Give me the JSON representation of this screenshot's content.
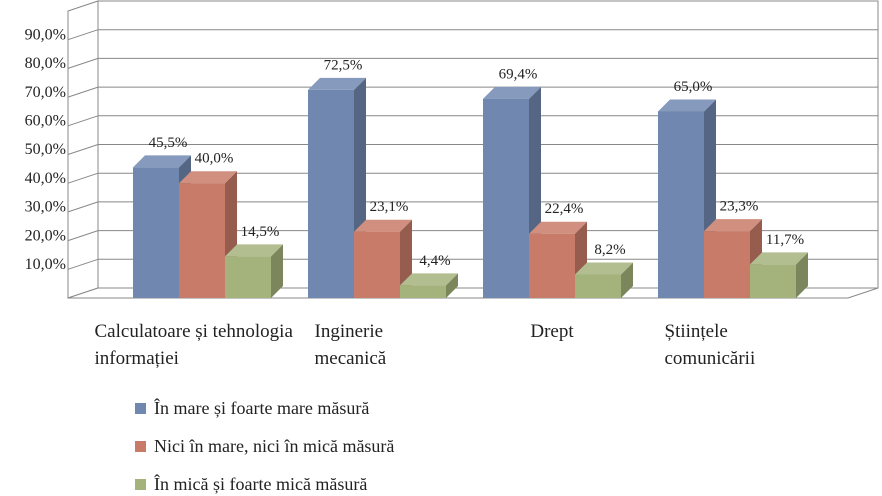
{
  "chart_data": {
    "type": "bar3d",
    "categories": [
      "Calculatoare și tehnologia informației",
      "Inginerie mecanică",
      "Drept",
      "Științele comunicării"
    ],
    "series": [
      {
        "name": "În mare și foarte mare măsură",
        "color": "#7088b0",
        "values": [
          45.5,
          72.5,
          69.4,
          65.0
        ],
        "value_labels": [
          "45,5%",
          "72,5%",
          "69,4%",
          "65,0%"
        ]
      },
      {
        "name": "Nici în mare, nici în mică măsură",
        "color": "#c87b68",
        "values": [
          40.0,
          23.1,
          22.4,
          23.3
        ],
        "value_labels": [
          "40,0%",
          "23,1%",
          "22,4%",
          "23,3%"
        ]
      },
      {
        "name": "În mică și foarte mică măsură",
        "color": "#a4b27c",
        "values": [
          14.5,
          4.4,
          8.2,
          11.7
        ],
        "value_labels": [
          "14,5%",
          "4,4%",
          "8,2%",
          "11,7%"
        ]
      }
    ],
    "ylim": [
      0,
      100
    ],
    "yticks": [
      {
        "value": 10,
        "label": "10,0%"
      },
      {
        "value": 20,
        "label": "20,0%"
      },
      {
        "value": 30,
        "label": "30,0%"
      },
      {
        "value": 40,
        "label": "40,0%"
      },
      {
        "value": 50,
        "label": "50,0%"
      },
      {
        "value": 60,
        "label": "60,0%"
      },
      {
        "value": 70,
        "label": "70,0%"
      },
      {
        "value": 80,
        "label": "80,0%"
      },
      {
        "value": 90,
        "label": "90,0%"
      }
    ],
    "grid": true,
    "legend": "bottom-left"
  }
}
